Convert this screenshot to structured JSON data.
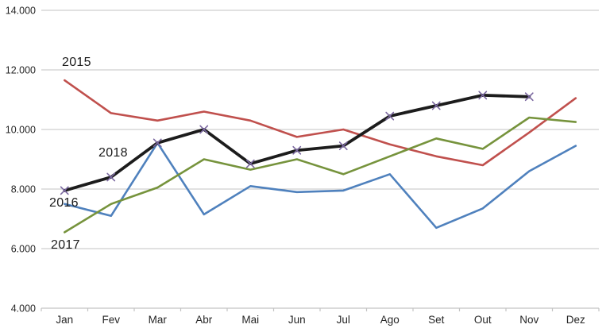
{
  "chart_data": {
    "type": "line",
    "title": "",
    "xlabel": "",
    "ylabel": "",
    "categories": [
      "Jan",
      "Fev",
      "Mar",
      "Abr",
      "Mai",
      "Jun",
      "Jul",
      "Ago",
      "Set",
      "Out",
      "Nov",
      "Dez"
    ],
    "series": [
      {
        "name": "2015",
        "color": "#C0504D",
        "line_width": 2.6,
        "marker": "none",
        "values": [
          11650,
          10550,
          10300,
          10600,
          10300,
          9750,
          10000,
          9500,
          9100,
          8800,
          9900,
          11050
        ]
      },
      {
        "name": "2016",
        "color": "#4F81BD",
        "line_width": 2.6,
        "marker": "none",
        "values": [
          7500,
          7100,
          9550,
          7150,
          8100,
          7900,
          7950,
          8500,
          6700,
          7350,
          8600,
          9450
        ]
      },
      {
        "name": "2017",
        "color": "#76933C",
        "line_width": 2.6,
        "marker": "none",
        "values": [
          6550,
          7500,
          8050,
          9000,
          8650,
          9000,
          8500,
          9100,
          9700,
          9350,
          10400,
          10250
        ]
      },
      {
        "name": "2018",
        "color": "#1c1c1c",
        "line_width": 3.8,
        "marker": "x",
        "marker_color": "#7B68A0",
        "values": [
          7950,
          8400,
          9550,
          10000,
          8850,
          9300,
          9450,
          10450,
          10800,
          11150,
          11100,
          null
        ]
      }
    ],
    "ylim": [
      4000,
      14000
    ],
    "y_tick_step": 2000,
    "y_tick_labels": [
      "4.000",
      "6.000",
      "8.000",
      "10.000",
      "12.000",
      "14.000"
    ],
    "grid": true,
    "gridline_color": "#c3c3c3",
    "axis_text_color": "#262626",
    "legend": "inline-labels-near-lines"
  }
}
